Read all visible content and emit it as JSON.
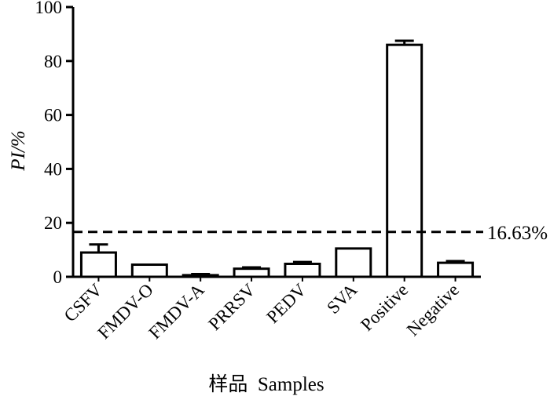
{
  "chart_data": {
    "type": "bar",
    "title": "",
    "xlabel": "样品  Samples",
    "ylabel": "PI/%",
    "ylim": [
      0,
      100
    ],
    "yticks": [
      0,
      20,
      40,
      60,
      80,
      100
    ],
    "categories": [
      "CSFV",
      "FMDV-O",
      "FMDV-A",
      "PRRSV",
      "PEDV",
      "SVA",
      "Positive",
      "Negative"
    ],
    "values": [
      9.0,
      4.5,
      0.6,
      3.0,
      4.8,
      10.5,
      86.0,
      5.2
    ],
    "error_upper": [
      12.0,
      4.5,
      1.0,
      3.5,
      5.5,
      10.5,
      87.5,
      5.8
    ],
    "threshold": {
      "value": 16.63,
      "label": "16.63%"
    },
    "grid": false,
    "legend": "none"
  }
}
